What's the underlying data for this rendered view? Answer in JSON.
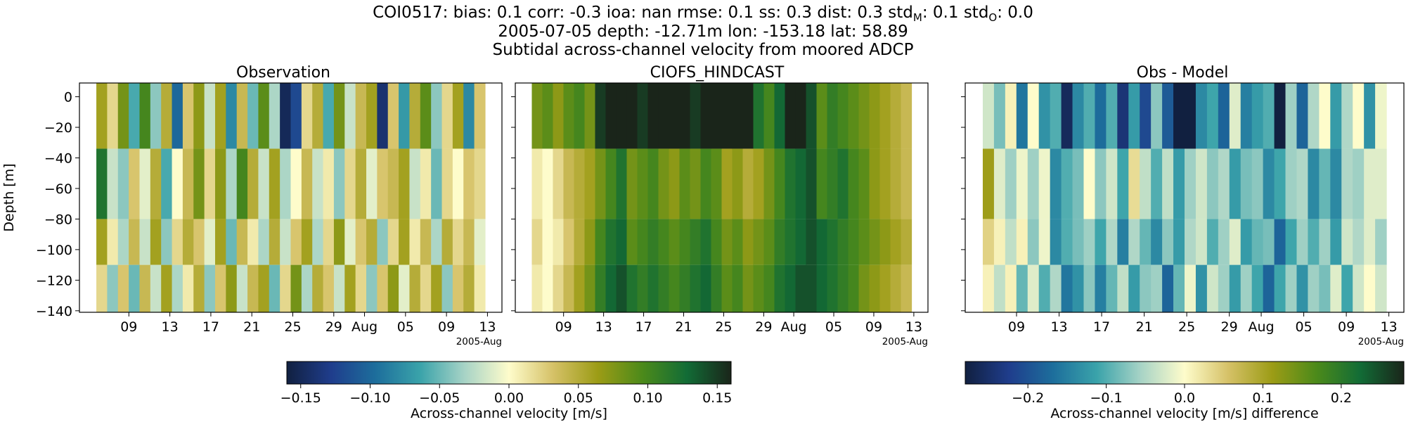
{
  "figure": {
    "title_lines": [
      "COI0517: bias: 0.1  corr: -0.3  ioa: nan  rmse: 0.1  ss: 0.3  dist: 0.3  std",
      "2005-07-05 depth: -12.71m lon: -153.18 lat: 58.89",
      "Subtidal across-channel velocity from moored ADCP"
    ],
    "title_std_m": {
      "base": "std",
      "sub": "M",
      "value": ": 0.1"
    },
    "title_std_o": {
      "base": "std",
      "sub": "O",
      "value": ": 0.0"
    }
  },
  "chart_data": [
    {
      "type": "heatmap",
      "title": "Observation",
      "ylabel": "Depth [m]",
      "xlabel": "",
      "x_tick_labels": [
        "09",
        "13",
        "17",
        "21",
        "25",
        "29",
        "Aug",
        "05",
        "09",
        "13"
      ],
      "x_offset_label": "2005-Aug",
      "x_range": [
        "2005-07-05",
        "2005-08-14"
      ],
      "y_tick_labels": [
        "0",
        "−20",
        "−40",
        "−60",
        "−80",
        "−100",
        "−120",
        "−140"
      ],
      "ylim": [
        -141,
        9
      ],
      "colorbar": "left",
      "values_m_per_s": [
        [
          0.06,
          0.02,
          0.08,
          -0.06,
          0.1,
          -0.04,
          0.05,
          -0.1,
          0.03,
          0.07,
          -0.02,
          0.06,
          -0.08,
          0.04,
          -0.05,
          0.09,
          -0.03,
          -0.15,
          -0.12,
          0.02,
          0.05,
          -0.06,
          0.08,
          -0.02,
          0.04,
          0.06,
          -0.14,
          0.03,
          -0.07,
          0.05,
          0.09,
          -0.04,
          0.02,
          0.06,
          -0.08,
          0.03
        ],
        [
          0.12,
          -0.02,
          -0.04,
          0.03,
          -0.01,
          0.05,
          -0.06,
          0.0,
          0.04,
          0.08,
          0.02,
          0.07,
          -0.03,
          0.1,
          0.05,
          -0.02,
          0.06,
          -0.03,
          0.0,
          0.04,
          -0.02,
          0.01,
          -0.04,
          0.02,
          0.05,
          -0.01,
          0.03,
          0.04,
          0.06,
          -0.02,
          0.01,
          -0.05,
          0.02,
          0.0,
          0.03,
          0.02
        ],
        [
          0.06,
          0.01,
          -0.03,
          0.04,
          -0.02,
          0.06,
          -0.04,
          0.02,
          0.05,
          0.03,
          -0.01,
          0.06,
          -0.05,
          0.04,
          0.01,
          -0.03,
          0.05,
          -0.02,
          0.03,
          0.06,
          -0.03,
          0.02,
          0.07,
          -0.01,
          0.03,
          0.05,
          -0.04,
          0.02,
          0.06,
          0.01,
          0.04,
          -0.03,
          0.05,
          0.02,
          0.04,
          -0.01
        ],
        [
          0.02,
          -0.04,
          0.03,
          -0.05,
          0.04,
          -0.02,
          0.06,
          -0.03,
          0.01,
          0.05,
          -0.04,
          0.03,
          0.07,
          -0.02,
          0.04,
          0.06,
          -0.05,
          0.02,
          0.08,
          -0.03,
          0.05,
          0.03,
          -0.02,
          0.06,
          0.02,
          -0.04,
          0.03,
          0.07,
          -0.01,
          0.05,
          0.02,
          0.06,
          -0.04,
          0.03,
          0.05,
          0.01
        ]
      ]
    },
    {
      "type": "heatmap",
      "title": "CIOFS_HINDCAST",
      "x_tick_labels": [
        "09",
        "13",
        "17",
        "21",
        "25",
        "29",
        "Aug",
        "05",
        "09",
        "13"
      ],
      "x_offset_label": "2005-Aug",
      "x_range": [
        "2005-07-05",
        "2005-08-14"
      ],
      "ylim": [
        -141,
        9
      ],
      "colorbar": "left",
      "values_m_per_s": [
        [
          0.08,
          0.09,
          0.07,
          0.09,
          0.1,
          0.08,
          0.15,
          0.16,
          0.16,
          0.16,
          0.15,
          0.16,
          0.16,
          0.16,
          0.16,
          0.15,
          0.16,
          0.16,
          0.16,
          0.16,
          0.16,
          0.12,
          0.1,
          0.13,
          0.16,
          0.16,
          0.14,
          0.09,
          0.11,
          0.1,
          0.09,
          0.08,
          0.07,
          0.06,
          0.05,
          0.04
        ],
        [
          0.01,
          0.0,
          0.02,
          0.04,
          0.05,
          0.06,
          0.08,
          0.1,
          0.12,
          0.08,
          0.09,
          0.1,
          0.08,
          0.07,
          0.09,
          0.08,
          0.1,
          0.09,
          0.06,
          0.07,
          0.05,
          0.06,
          0.08,
          0.1,
          0.12,
          0.13,
          0.14,
          0.1,
          0.11,
          0.12,
          0.1,
          0.09,
          0.07,
          0.06,
          0.05,
          0.04
        ],
        [
          0.02,
          0.0,
          0.01,
          0.03,
          0.05,
          0.07,
          0.1,
          0.12,
          0.13,
          0.09,
          0.1,
          0.11,
          0.1,
          0.09,
          0.1,
          0.11,
          0.12,
          0.1,
          0.08,
          0.09,
          0.07,
          0.08,
          0.09,
          0.11,
          0.12,
          0.13,
          0.14,
          0.13,
          0.12,
          0.11,
          0.1,
          0.09,
          0.08,
          0.07,
          0.06,
          0.05
        ],
        [
          0.01,
          0.0,
          0.02,
          0.04,
          0.06,
          0.08,
          0.11,
          0.13,
          0.14,
          0.12,
          0.11,
          0.12,
          0.11,
          0.1,
          0.11,
          0.12,
          0.13,
          0.11,
          0.09,
          0.1,
          0.08,
          0.09,
          0.1,
          0.12,
          0.13,
          0.14,
          0.14,
          0.13,
          0.12,
          0.11,
          0.1,
          0.08,
          0.07,
          0.06,
          0.05,
          0.04
        ]
      ]
    },
    {
      "type": "heatmap",
      "title": "Obs - Model",
      "x_tick_labels": [
        "09",
        "13",
        "17",
        "21",
        "25",
        "29",
        "Aug",
        "05",
        "09",
        "13"
      ],
      "x_offset_label": "2005-Aug",
      "x_range": [
        "2005-07-05",
        "2005-08-14"
      ],
      "ylim": [
        -141,
        9
      ],
      "colorbar": "right",
      "values_m_per_s": [
        [
          -0.03,
          -0.08,
          0.01,
          -0.16,
          0.0,
          -0.13,
          -0.1,
          -0.26,
          -0.14,
          -0.1,
          -0.17,
          -0.1,
          -0.24,
          -0.12,
          -0.21,
          -0.07,
          -0.19,
          -0.28,
          -0.28,
          -0.14,
          -0.11,
          -0.18,
          -0.02,
          -0.15,
          -0.12,
          -0.1,
          -0.28,
          -0.06,
          -0.18,
          -0.05,
          0.0,
          -0.12,
          -0.05,
          0.0,
          -0.13,
          -0.01
        ],
        [
          0.11,
          -0.02,
          -0.06,
          -0.01,
          -0.06,
          -0.01,
          -0.14,
          -0.1,
          -0.08,
          0.0,
          -0.07,
          -0.03,
          -0.11,
          0.03,
          -0.04,
          -0.1,
          -0.04,
          -0.12,
          -0.06,
          -0.03,
          -0.07,
          -0.05,
          -0.12,
          -0.08,
          -0.07,
          -0.14,
          -0.11,
          -0.06,
          -0.05,
          -0.14,
          -0.09,
          -0.14,
          -0.05,
          -0.06,
          -0.02,
          -0.02
        ],
        [
          0.04,
          0.01,
          -0.04,
          0.01,
          -0.07,
          -0.01,
          -0.14,
          -0.1,
          -0.08,
          -0.06,
          -0.11,
          -0.05,
          -0.15,
          -0.05,
          -0.09,
          -0.14,
          -0.07,
          -0.12,
          -0.05,
          -0.03,
          -0.1,
          -0.06,
          -0.02,
          -0.12,
          -0.09,
          -0.08,
          -0.18,
          -0.11,
          -0.06,
          -0.1,
          -0.06,
          -0.12,
          -0.03,
          -0.05,
          -0.02,
          -0.06
        ],
        [
          0.01,
          -0.04,
          0.01,
          -0.09,
          -0.02,
          -0.1,
          -0.05,
          -0.16,
          -0.13,
          -0.07,
          -0.15,
          -0.09,
          -0.04,
          -0.12,
          -0.07,
          -0.06,
          -0.18,
          -0.09,
          -0.01,
          -0.13,
          -0.03,
          -0.06,
          -0.12,
          -0.06,
          -0.11,
          -0.18,
          -0.11,
          -0.06,
          -0.13,
          -0.06,
          -0.08,
          -0.02,
          -0.11,
          -0.03,
          0.0,
          -0.03
        ]
      ]
    }
  ],
  "colorbars": {
    "left": {
      "cmap": "delta",
      "vmin": -0.16,
      "vmax": 0.16,
      "ticks": [
        -0.15,
        -0.1,
        -0.05,
        0.0,
        0.05,
        0.1,
        0.15
      ],
      "tick_labels": [
        "−0.15",
        "−0.10",
        "−0.05",
        "0.00",
        "0.05",
        "0.10",
        "0.15"
      ],
      "label": "Across-channel velocity [m/s]"
    },
    "right": {
      "cmap": "delta",
      "vmin": -0.28,
      "vmax": 0.28,
      "ticks": [
        -0.2,
        -0.1,
        0.0,
        0.1,
        0.2
      ],
      "tick_labels": [
        "−0.2",
        "−0.1",
        "0.0",
        "0.1",
        "0.2"
      ],
      "label": "Across-channel velocity [m/s] difference"
    }
  },
  "colormap_colors": [
    "#112040",
    "#1f3d8c",
    "#1d6e9c",
    "#3aa3aa",
    "#a7d3c6",
    "#fefccb",
    "#d5c167",
    "#9c9c16",
    "#4c8a1a",
    "#126c36",
    "#1a251a"
  ]
}
